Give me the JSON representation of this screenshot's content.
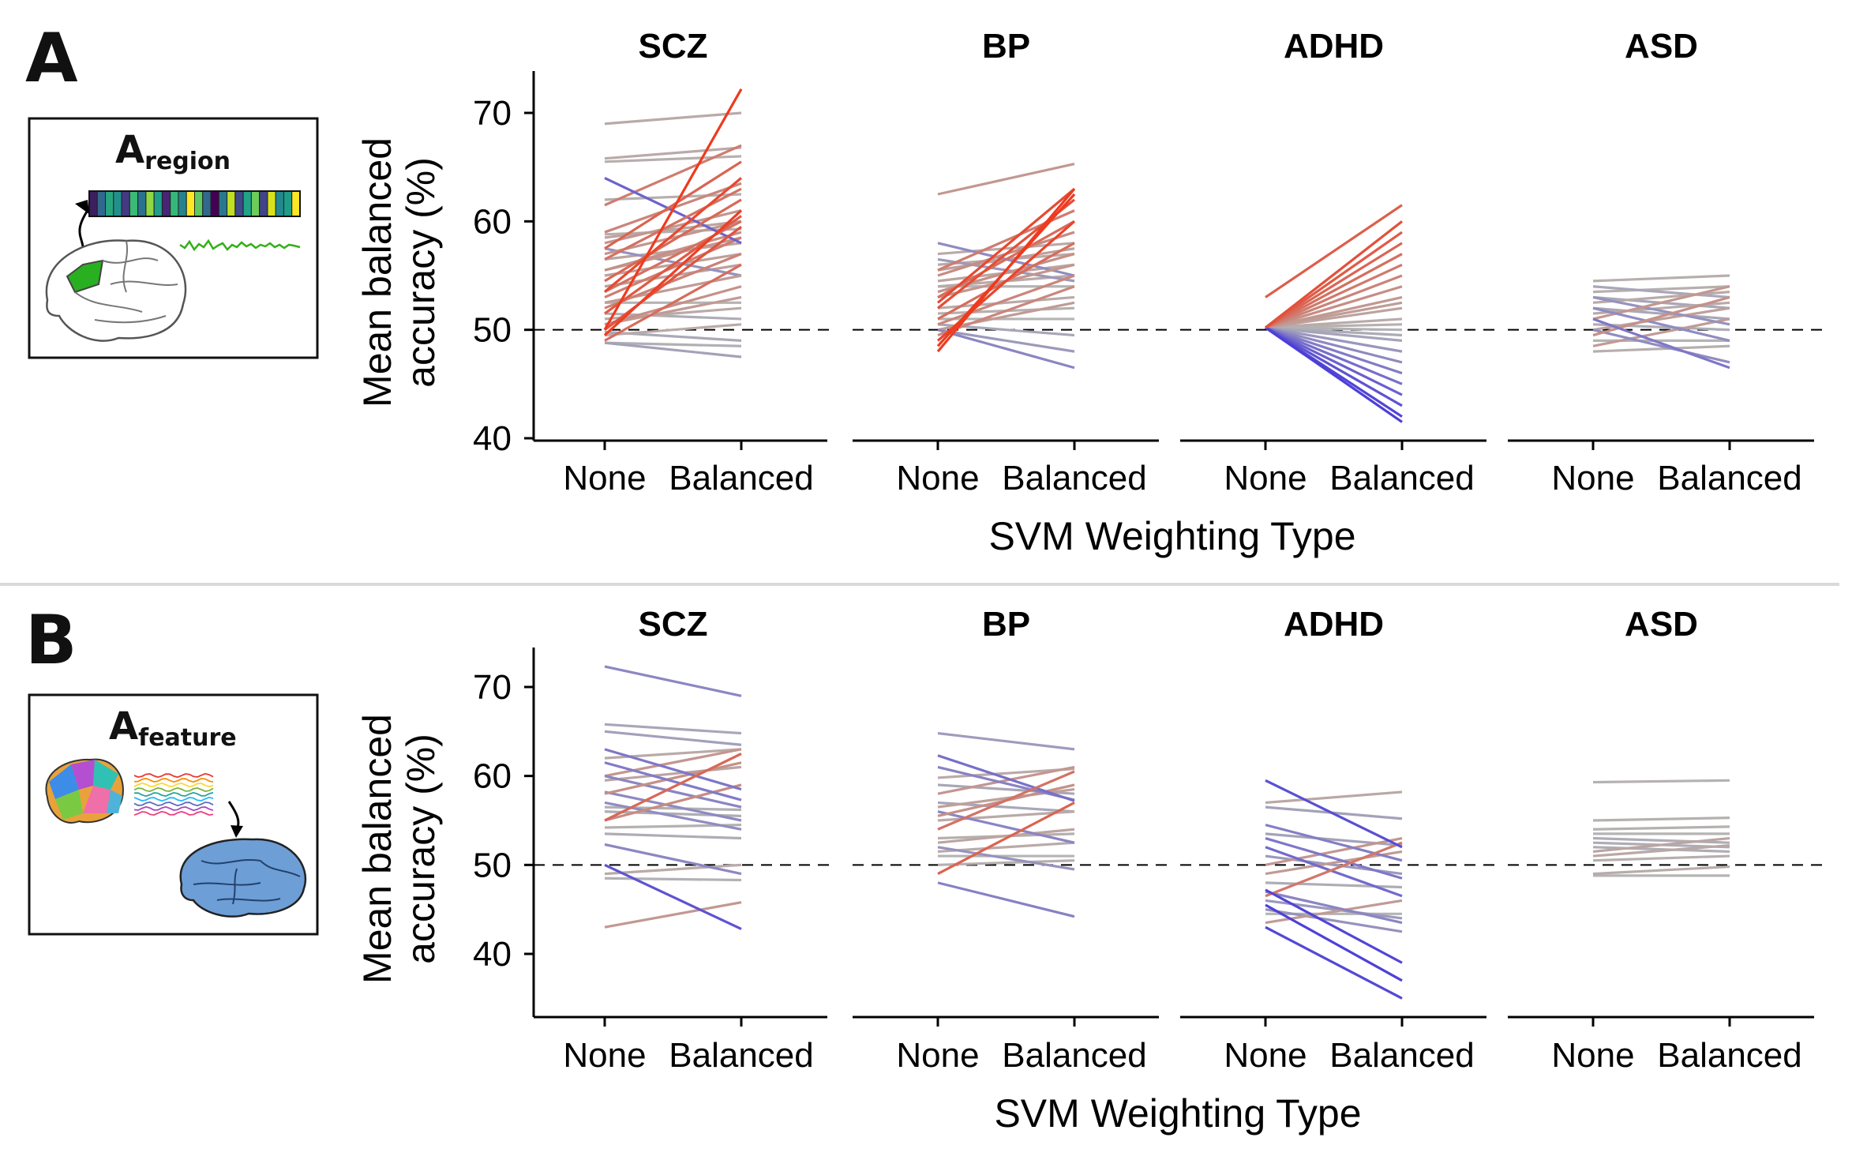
{
  "panels": [
    {
      "letter": "A",
      "inset_main": "A",
      "inset_sub": "region",
      "ylabel_line1": "Mean balanced",
      "ylabel_line2": "accuracy (%)",
      "xlabel": "SVM Weighting Type"
    },
    {
      "letter": "B",
      "inset_main": "A",
      "inset_sub": "feature",
      "ylabel_line1": "Mean balanced",
      "ylabel_line2": "accuracy (%)",
      "xlabel": "SVM Weighting Type"
    }
  ],
  "colors": {
    "increase": "#ee3a1e",
    "decrease": "#2412e6",
    "neutral": "#b4b4b4",
    "reference_line": "#000000"
  },
  "chart_data": [
    {
      "type": "line",
      "panel": "A",
      "x_categories": [
        "None",
        "Balanced"
      ],
      "xlabel": "SVM Weighting Type",
      "ylabel": "Mean balanced accuracy (%)",
      "ylim": [
        40,
        74
      ],
      "yticks": [
        40,
        50,
        60,
        70
      ],
      "reference_line": 50,
      "facets": [
        {
          "title": "SCZ",
          "lines": [
            [
              50,
              72.2
            ],
            [
              69,
              70
            ],
            [
              65.8,
              66.8
            ],
            [
              64,
              58
            ],
            [
              61.5,
              67
            ],
            [
              59,
              63.5
            ],
            [
              58.5,
              60
            ],
            [
              58,
              61
            ],
            [
              57.5,
              55
            ],
            [
              57,
              60
            ],
            [
              56.5,
              58
            ],
            [
              55.5,
              59
            ],
            [
              55,
              57
            ],
            [
              54.5,
              62
            ],
            [
              54,
              56
            ],
            [
              53.5,
              64
            ],
            [
              53,
              58.5
            ],
            [
              52.5,
              55
            ],
            [
              52,
              57
            ],
            [
              51.5,
              60.5
            ],
            [
              51,
              52
            ],
            [
              50.5,
              54
            ],
            [
              50,
              59.5
            ],
            [
              49.5,
              61
            ],
            [
              49,
              56
            ],
            [
              48.8,
              47.5
            ],
            [
              48.8,
              48.5
            ],
            [
              49.5,
              50.5
            ],
            [
              49.8,
              49
            ],
            [
              50.5,
              53
            ],
            [
              51.5,
              51
            ],
            [
              52.5,
              52.5
            ],
            [
              53.5,
              60
            ],
            [
              55.5,
              58.5
            ],
            [
              56.5,
              63
            ],
            [
              57.5,
              65.5
            ],
            [
              58.8,
              59.3
            ],
            [
              62,
              62.5
            ],
            [
              65.5,
              66
            ]
          ]
        },
        {
          "title": "BP",
          "lines": [
            [
              62.5,
              65.3
            ],
            [
              58,
              55
            ],
            [
              57,
              58
            ],
            [
              56,
              57
            ],
            [
              55.5,
              61
            ],
            [
              55,
              59
            ],
            [
              54.5,
              56
            ],
            [
              54,
              54
            ],
            [
              53.5,
              57
            ],
            [
              53,
              60
            ],
            [
              52.5,
              63
            ],
            [
              52,
              62
            ],
            [
              51.5,
              52
            ],
            [
              51,
              58
            ],
            [
              50.5,
              55
            ],
            [
              50,
              52.5
            ],
            [
              49.5,
              54
            ],
            [
              49,
              60
            ],
            [
              48.5,
              62.5
            ],
            [
              48,
              63
            ],
            [
              50.5,
              49.5
            ],
            [
              50,
              48
            ],
            [
              50,
              46.5
            ],
            [
              51,
              51
            ],
            [
              52,
              53
            ],
            [
              53,
              56
            ],
            [
              54,
              55
            ],
            [
              55.5,
              57.5
            ],
            [
              56.5,
              54.5
            ]
          ]
        },
        {
          "title": "ADHD",
          "lines": [
            [
              53,
              61.5
            ],
            [
              50.2,
              60
            ],
            [
              50.2,
              59
            ],
            [
              50.2,
              58
            ],
            [
              50.2,
              57
            ],
            [
              50.2,
              56
            ],
            [
              50.2,
              55
            ],
            [
              50.2,
              54
            ],
            [
              50.2,
              53
            ],
            [
              50.2,
              52
            ],
            [
              50.2,
              51
            ],
            [
              50.2,
              50
            ],
            [
              50.2,
              49
            ],
            [
              50.2,
              48
            ],
            [
              50.2,
              47
            ],
            [
              50.2,
              46
            ],
            [
              50.2,
              45
            ],
            [
              50.2,
              44
            ],
            [
              50.2,
              43
            ],
            [
              50.2,
              42
            ],
            [
              50.2,
              41.5
            ],
            [
              50.2,
              52.5
            ],
            [
              50.2,
              50.5
            ],
            [
              50.2,
              49.5
            ]
          ]
        },
        {
          "title": "ASD",
          "lines": [
            [
              54.5,
              55
            ],
            [
              54,
              53
            ],
            [
              53.5,
              54
            ],
            [
              53,
              52
            ],
            [
              52.5,
              53.5
            ],
            [
              52,
              51
            ],
            [
              51.5,
              52.5
            ],
            [
              51,
              54
            ],
            [
              50.5,
              50
            ],
            [
              50,
              52
            ],
            [
              49.5,
              53
            ],
            [
              49,
              49
            ],
            [
              48.5,
              51
            ],
            [
              48,
              48.5
            ],
            [
              50,
              47
            ],
            [
              51,
              46.5
            ],
            [
              52,
              49
            ],
            [
              53,
              50.5
            ]
          ]
        }
      ]
    },
    {
      "type": "line",
      "panel": "B",
      "x_categories": [
        "None",
        "Balanced"
      ],
      "xlabel": "SVM Weighting Type",
      "ylabel": "Mean balanced accuracy (%)",
      "ylim": [
        34,
        75
      ],
      "yticks": [
        40,
        50,
        60,
        70
      ],
      "reference_line": 50,
      "facets": [
        {
          "title": "SCZ",
          "lines": [
            [
              72.3,
              69
            ],
            [
              65.8,
              64.8
            ],
            [
              65,
              63.5
            ],
            [
              63,
              58.5
            ],
            [
              62,
              63
            ],
            [
              61.5,
              57.3
            ],
            [
              60,
              56.5
            ],
            [
              59.5,
              61
            ],
            [
              58,
              61.5
            ],
            [
              58.2,
              55
            ],
            [
              57,
              54
            ],
            [
              56,
              55.5
            ],
            [
              55,
              59
            ],
            [
              54.2,
              54.5
            ],
            [
              53.5,
              53
            ],
            [
              52.3,
              49
            ],
            [
              50,
              42.8
            ],
            [
              49,
              50
            ],
            [
              48.5,
              48.3
            ],
            [
              43,
              45.8
            ],
            [
              55,
              62.5
            ],
            [
              56.5,
              56.2
            ],
            [
              60,
              63
            ]
          ]
        },
        {
          "title": "BP",
          "lines": [
            [
              64.8,
              63
            ],
            [
              62.3,
              57.2
            ],
            [
              61,
              57.3
            ],
            [
              59.8,
              60.8
            ],
            [
              59,
              58
            ],
            [
              58,
              61
            ],
            [
              57,
              56
            ],
            [
              56,
              52.5
            ],
            [
              55,
              56
            ],
            [
              54,
              60.5
            ],
            [
              53,
              53.5
            ],
            [
              52,
              49.5
            ],
            [
              51,
              51
            ],
            [
              50,
              50.5
            ],
            [
              49,
              57
            ],
            [
              48,
              44.2
            ],
            [
              55.5,
              59
            ],
            [
              56.5,
              58.5
            ],
            [
              52.5,
              54
            ],
            [
              51.5,
              52.5
            ]
          ]
        },
        {
          "title": "ADHD",
          "lines": [
            [
              59.5,
              52
            ],
            [
              57,
              58.2
            ],
            [
              56.5,
              55.2
            ],
            [
              54.5,
              50.5
            ],
            [
              53.5,
              52.2
            ],
            [
              53,
              48.5
            ],
            [
              52,
              46.5
            ],
            [
              51,
              49
            ],
            [
              50,
              53
            ],
            [
              49,
              51.5
            ],
            [
              48,
              47.5
            ],
            [
              47.2,
              39
            ],
            [
              46,
              44
            ],
            [
              45.5,
              37
            ],
            [
              45,
              42.5
            ],
            [
              44.5,
              44.5
            ],
            [
              43.5,
              46
            ],
            [
              43,
              35
            ],
            [
              47,
              43.5
            ],
            [
              46.5,
              52.5
            ]
          ]
        },
        {
          "title": "ASD",
          "lines": [
            [
              59.3,
              59.5
            ],
            [
              55,
              55.3
            ],
            [
              54,
              54.3
            ],
            [
              53.5,
              53.5
            ],
            [
              53,
              52.5
            ],
            [
              52.5,
              52
            ],
            [
              52,
              51.5
            ],
            [
              51.5,
              53
            ],
            [
              51,
              52.2
            ],
            [
              50.5,
              51
            ],
            [
              49,
              49.8
            ],
            [
              48.8,
              48.8
            ]
          ]
        }
      ]
    }
  ]
}
